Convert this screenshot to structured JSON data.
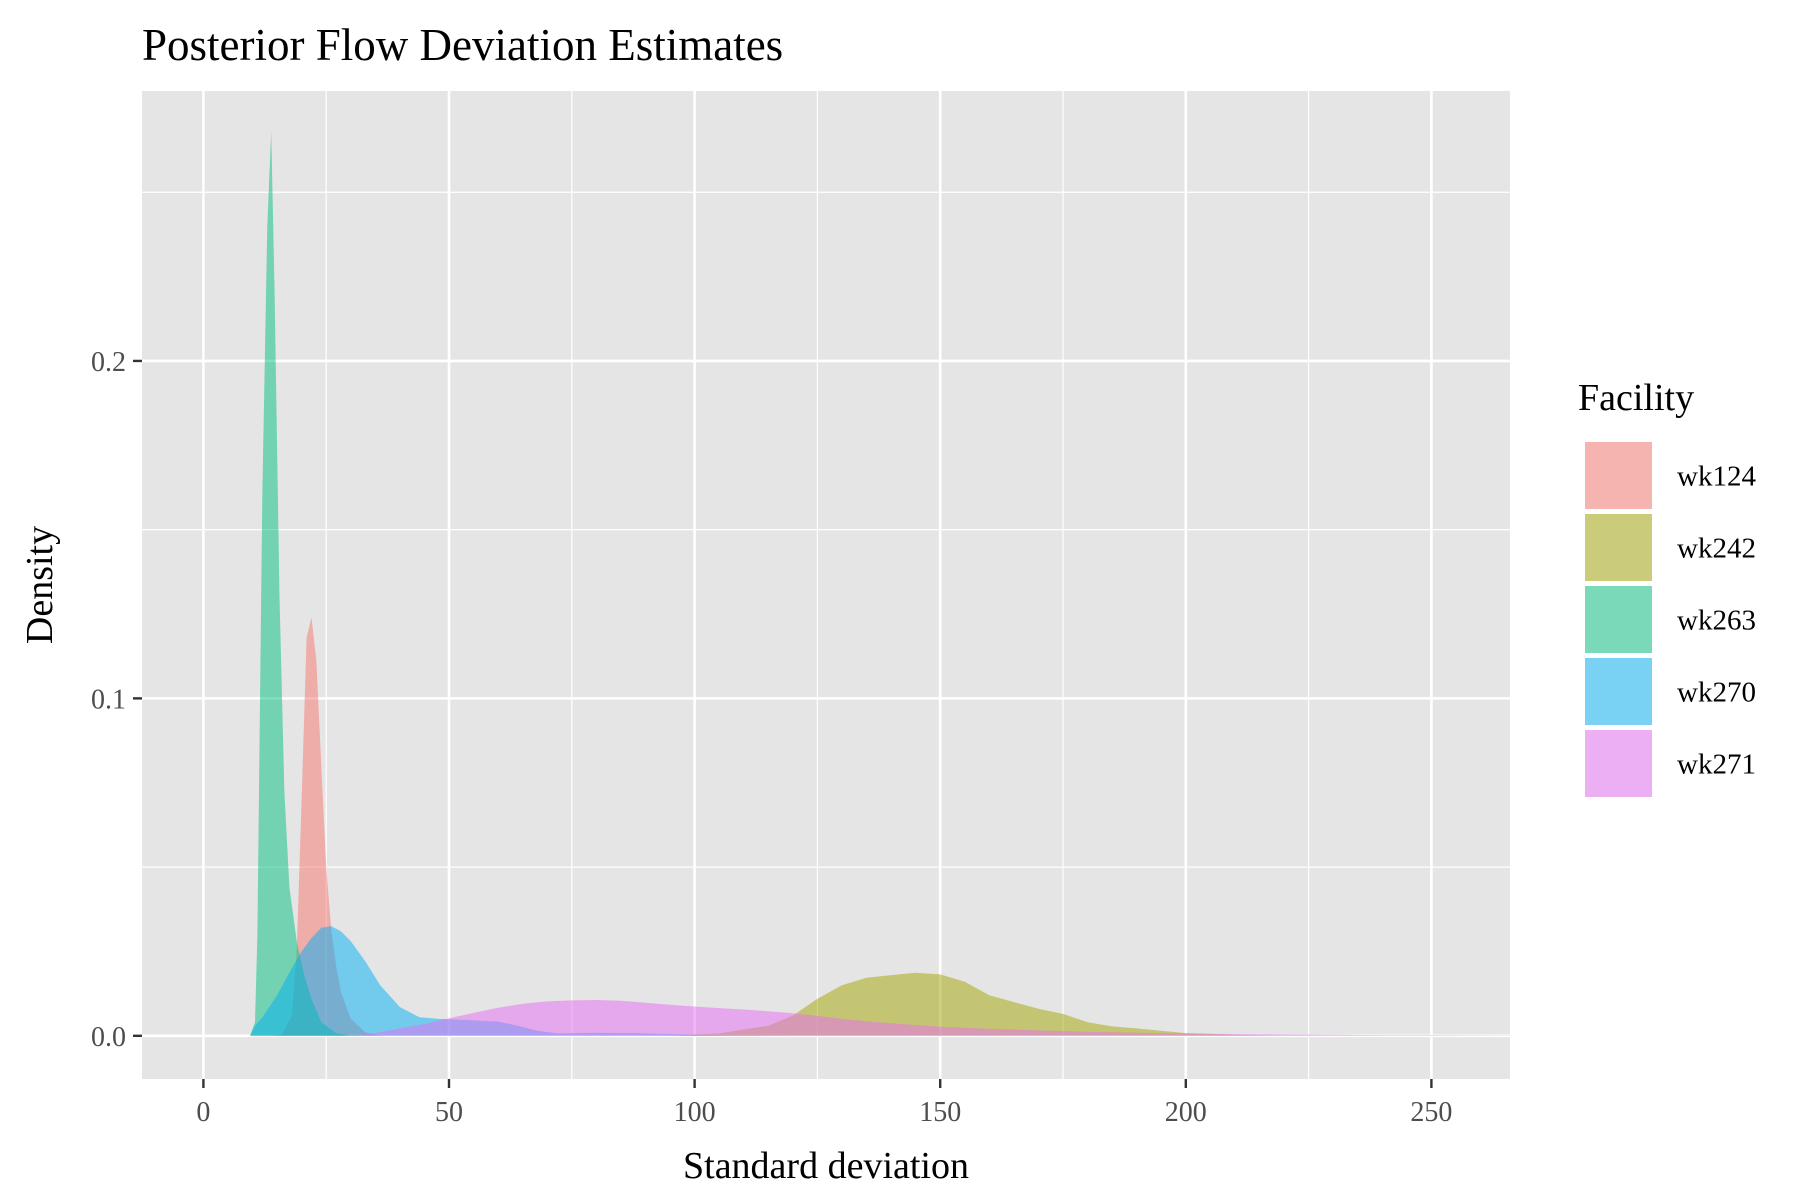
{
  "chart_data": {
    "type": "area",
    "title": "Posterior Flow Deviation Estimates",
    "xlabel": "Standard deviation",
    "ylabel": "Density",
    "xlim": [
      -12.5,
      266
    ],
    "ylim": [
      -0.0128,
      0.28
    ],
    "x_ticks": [
      0,
      50,
      100,
      150,
      200,
      250
    ],
    "x_tick_labels": [
      "0",
      "50",
      "100",
      "150",
      "200",
      "250"
    ],
    "y_ticks": [
      0.0,
      0.1,
      0.2
    ],
    "y_tick_labels": [
      "0.0",
      "0.1",
      "0.2"
    ],
    "grid": true,
    "panel_background": "#e5e5e5",
    "legend": {
      "title": "Facility",
      "placement": "right"
    },
    "series": [
      {
        "name": "wk124",
        "color": "#F8766D",
        "points": [
          [
            14,
            0
          ],
          [
            16,
            0.0004
          ],
          [
            18,
            0.006
          ],
          [
            19,
            0.025
          ],
          [
            20,
            0.07
          ],
          [
            21,
            0.118
          ],
          [
            22,
            0.124
          ],
          [
            23,
            0.111
          ],
          [
            24,
            0.08
          ],
          [
            25,
            0.05
          ],
          [
            26,
            0.032
          ],
          [
            27,
            0.021
          ],
          [
            28,
            0.013
          ],
          [
            30,
            0.005
          ],
          [
            33,
            0.001
          ],
          [
            36,
            0
          ]
        ]
      },
      {
        "name": "wk242",
        "color": "#A3A500",
        "points": [
          [
            95,
            0
          ],
          [
            105,
            0.0007
          ],
          [
            115,
            0.003
          ],
          [
            120,
            0.006
          ],
          [
            125,
            0.011
          ],
          [
            130,
            0.015
          ],
          [
            135,
            0.0172
          ],
          [
            140,
            0.018
          ],
          [
            145,
            0.0187
          ],
          [
            150,
            0.0182
          ],
          [
            155,
            0.016
          ],
          [
            160,
            0.012
          ],
          [
            165,
            0.01
          ],
          [
            170,
            0.008
          ],
          [
            175,
            0.0065
          ],
          [
            180,
            0.004
          ],
          [
            185,
            0.0028
          ],
          [
            190,
            0.0022
          ],
          [
            195,
            0.0015
          ],
          [
            200,
            0.0008
          ],
          [
            210,
            0.0003
          ],
          [
            220,
            0.0001
          ],
          [
            235,
            0
          ]
        ]
      },
      {
        "name": "wk263",
        "color": "#00BF7D",
        "points": [
          [
            9.5,
            0
          ],
          [
            10.5,
            0.004
          ],
          [
            11,
            0.03
          ],
          [
            12,
            0.16
          ],
          [
            13,
            0.24
          ],
          [
            13.8,
            0.268
          ],
          [
            14.5,
            0.22
          ],
          [
            15.5,
            0.13
          ],
          [
            16.5,
            0.072
          ],
          [
            17.5,
            0.044
          ],
          [
            19,
            0.028
          ],
          [
            20.5,
            0.018
          ],
          [
            22,
            0.011
          ],
          [
            24,
            0.004
          ],
          [
            27,
            0.0008
          ],
          [
            30,
            0
          ]
        ]
      },
      {
        "name": "wk270",
        "color": "#00B0F6",
        "points": [
          [
            9.5,
            0
          ],
          [
            10.5,
            0.003
          ],
          [
            12,
            0.0055
          ],
          [
            15,
            0.012
          ],
          [
            18,
            0.02
          ],
          [
            20,
            0.025
          ],
          [
            22,
            0.029
          ],
          [
            24,
            0.032
          ],
          [
            26,
            0.0325
          ],
          [
            28,
            0.031
          ],
          [
            30,
            0.028
          ],
          [
            33,
            0.022
          ],
          [
            36,
            0.015
          ],
          [
            40,
            0.0085
          ],
          [
            44,
            0.0055
          ],
          [
            48,
            0.005
          ],
          [
            52,
            0.0048
          ],
          [
            56,
            0.0045
          ],
          [
            60,
            0.0042
          ],
          [
            64,
            0.003
          ],
          [
            68,
            0.0015
          ],
          [
            72,
            0.0007
          ],
          [
            76,
            0.0008
          ],
          [
            80,
            0.0009
          ],
          [
            84,
            0.0008
          ],
          [
            88,
            0.0008
          ],
          [
            92,
            0.0006
          ],
          [
            96,
            0.0005
          ],
          [
            100,
            0.0003
          ],
          [
            108,
            0.0001
          ],
          [
            120,
            0
          ]
        ]
      },
      {
        "name": "wk271",
        "color": "#E76BF3",
        "points": [
          [
            30,
            0
          ],
          [
            35,
            0.0008
          ],
          [
            40,
            0.0022
          ],
          [
            45,
            0.0035
          ],
          [
            50,
            0.0052
          ],
          [
            55,
            0.0068
          ],
          [
            60,
            0.0083
          ],
          [
            65,
            0.0095
          ],
          [
            70,
            0.0102
          ],
          [
            75,
            0.0105
          ],
          [
            80,
            0.0106
          ],
          [
            85,
            0.0104
          ],
          [
            90,
            0.0098
          ],
          [
            95,
            0.0092
          ],
          [
            100,
            0.0087
          ],
          [
            105,
            0.0082
          ],
          [
            110,
            0.0078
          ],
          [
            115,
            0.0073
          ],
          [
            120,
            0.0067
          ],
          [
            125,
            0.0059
          ],
          [
            130,
            0.005
          ],
          [
            135,
            0.0043
          ],
          [
            140,
            0.0037
          ],
          [
            145,
            0.0032
          ],
          [
            150,
            0.0027
          ],
          [
            160,
            0.0021
          ],
          [
            170,
            0.0016
          ],
          [
            180,
            0.0012
          ],
          [
            190,
            0.0009
          ],
          [
            200,
            0.0007
          ],
          [
            210,
            0.0005
          ],
          [
            220,
            0.0004
          ],
          [
            230,
            0.0003
          ],
          [
            240,
            0.0002
          ],
          [
            250,
            0.0002
          ],
          [
            266,
            0.0001
          ]
        ]
      }
    ]
  }
}
